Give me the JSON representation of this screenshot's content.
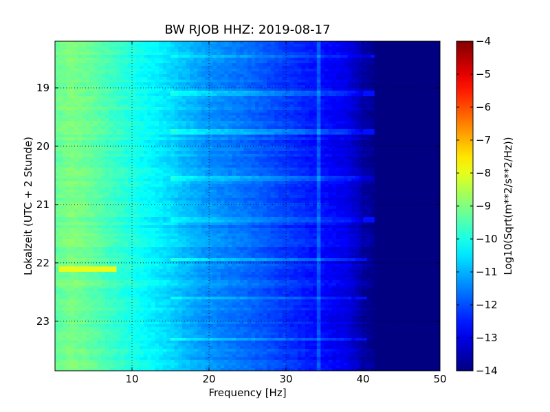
{
  "chart_data": [
    {
      "type": "heatmap",
      "title": "BW RJOB HHZ: 2019-08-17",
      "xlabel": "Frequency [Hz]",
      "ylabel": "Lokalzeit (UTC + 2 Stunde)",
      "xlim": [
        0,
        50
      ],
      "ylim": [
        18.2,
        23.85
      ],
      "y_inverted": true,
      "x_ticks": [
        10,
        20,
        30,
        40,
        50
      ],
      "y_ticks": [
        19,
        20,
        21,
        22,
        23
      ],
      "grid": true,
      "colormap": "jet",
      "z_range": [
        -14,
        -4
      ],
      "profile": {
        "frequency_hz": [
          0,
          2,
          5,
          10,
          15,
          16.8,
          20,
          25,
          30,
          35,
          38,
          40,
          42,
          50
        ],
        "value": [
          -9.3,
          -9.0,
          -9.3,
          -10.0,
          -10.6,
          -10.9,
          -11.3,
          -11.7,
          -12.2,
          -12.7,
          -13.0,
          -13.6,
          -14.0,
          -14.0
        ]
      },
      "features": {
        "tonal_line_hz": 34.3,
        "strong_band": {
          "time": 22.1,
          "freq_range": [
            0.5,
            8
          ],
          "value": -8.0
        },
        "noisy_rows": [
          {
            "time": 18.45,
            "extent_hz": 41
          },
          {
            "time": 19.1,
            "extent_hz": 40
          },
          {
            "time": 19.75,
            "extent_hz": 40
          },
          {
            "time": 20.55,
            "extent_hz": 42
          },
          {
            "time": 21.25,
            "extent_hz": 40
          },
          {
            "time": 21.95,
            "extent_hz": 39
          },
          {
            "time": 22.6,
            "extent_hz": 39
          },
          {
            "time": 23.3,
            "extent_hz": 39
          }
        ]
      }
    },
    {
      "type": "colorbar",
      "label": "Log10(Sqrt(m**2/s**2/Hz))",
      "range": [
        -14,
        -4
      ],
      "ticks": [
        "−4",
        "−5",
        "−6",
        "−7",
        "−8",
        "−9",
        "−10",
        "−11",
        "−12",
        "−13",
        "−14"
      ]
    }
  ]
}
